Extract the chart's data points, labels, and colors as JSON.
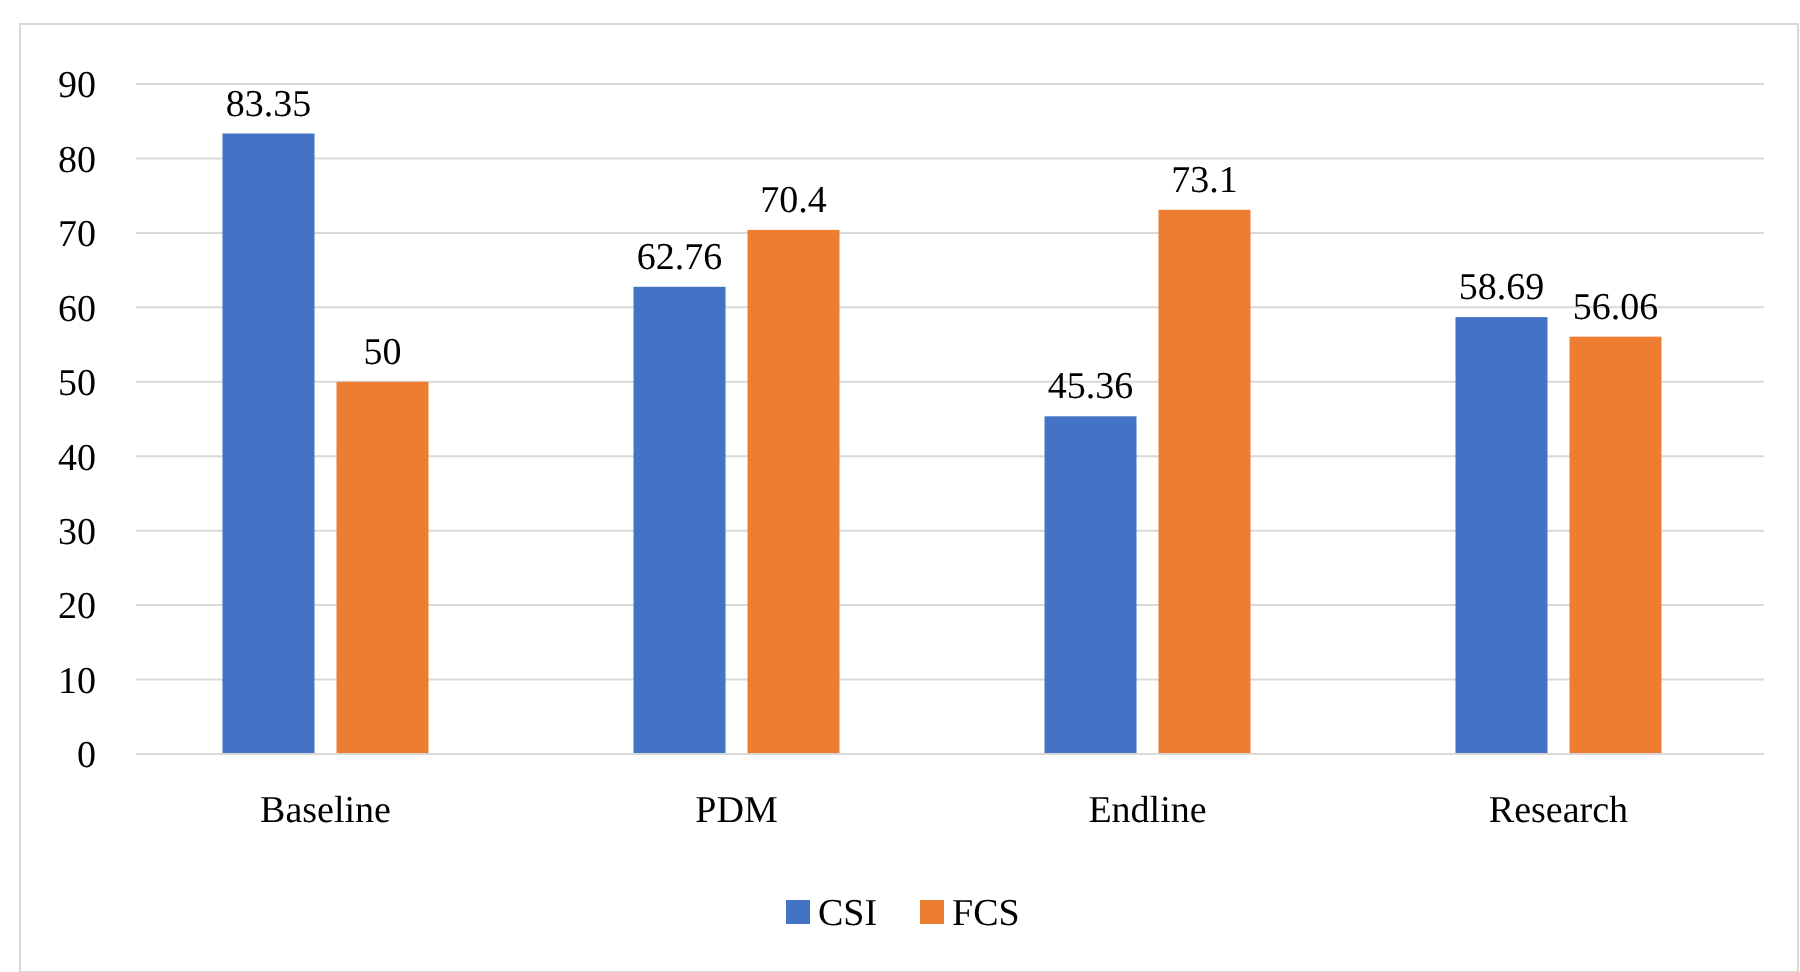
{
  "chart_data": {
    "type": "bar",
    "categories": [
      "Baseline",
      "PDM",
      "Endline",
      "Research"
    ],
    "series": [
      {
        "name": "CSI",
        "color": "#4472c4",
        "values": [
          83.35,
          62.76,
          45.36,
          58.69
        ]
      },
      {
        "name": "FCS",
        "color": "#ed7d31",
        "values": [
          50,
          70.4,
          73.1,
          56.06
        ]
      }
    ],
    "ylim": [
      0,
      90
    ],
    "yticks": [
      0,
      10,
      20,
      30,
      40,
      50,
      60,
      70,
      80,
      90
    ],
    "grid": "y",
    "legend": "bottom",
    "data_labels": true
  }
}
